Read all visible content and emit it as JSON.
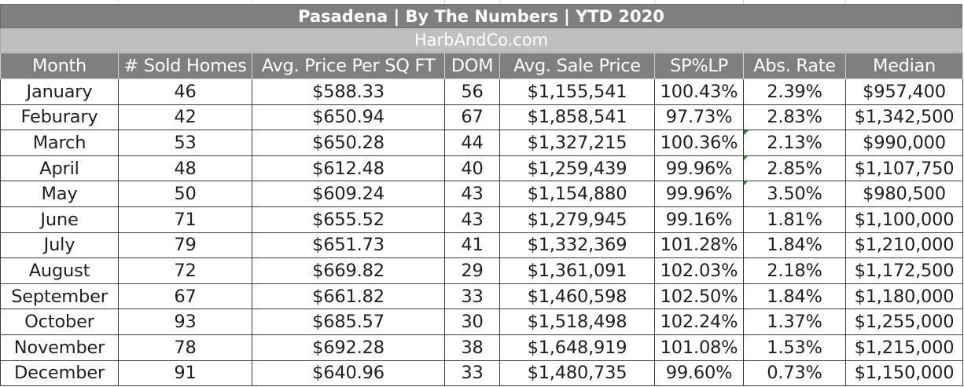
{
  "sheet": {
    "title": "Pasadena |  By The Numbers  |  YTD 2020",
    "subtitle": "HarbAndCo.com"
  },
  "table": {
    "headers": [
      "Month",
      "# Sold Homes",
      "Avg. Price Per SQ FT",
      "DOM",
      "Avg. Sale Price",
      "SP%LP",
      "Abs. Rate",
      "Median"
    ],
    "rows": [
      [
        "January",
        "46",
        "$588.33",
        "56",
        "$1,155,541",
        "100.43%",
        "2.39%",
        "$957,400"
      ],
      [
        "Feburary",
        "42",
        "$650.94",
        "67",
        "$1,858,541",
        "97.73%",
        "2.83%",
        "$1,342,500"
      ],
      [
        "March",
        "53",
        "$650.28",
        "44",
        "$1,327,215",
        "100.36%",
        "2.13%",
        "$990,000"
      ],
      [
        "April",
        "48",
        "$612.48",
        "40",
        "$1,259,439",
        "99.96%",
        "2.85%",
        "$1,107,750"
      ],
      [
        "May",
        "50",
        "$609.24",
        "43",
        "$1,154,880",
        "99.96%",
        "3.50%",
        "$980,500"
      ],
      [
        "June",
        "71",
        "$655.52",
        "43",
        "$1,279,945",
        "99.16%",
        "1.81%",
        "$1,100,000"
      ],
      [
        "July",
        "79",
        "$651.73",
        "41",
        "$1,332,369",
        "101.28%",
        "1.84%",
        "$1,210,000"
      ],
      [
        "August",
        "72",
        "$669.82",
        "29",
        "$1,361,091",
        "102.03%",
        "2.18%",
        "$1,172,500"
      ],
      [
        "September",
        "67",
        "$661.82",
        "33",
        "$1,460,598",
        "102.50%",
        "1.84%",
        "$1,180,000"
      ],
      [
        "October",
        "93",
        "$685.57",
        "30",
        "$1,518,498",
        "102.24%",
        "1.37%",
        "$1,255,000"
      ],
      [
        "November",
        "78",
        "$692.28",
        "38",
        "$1,648,919",
        "101.08%",
        "1.53%",
        "$1,215,000"
      ],
      [
        "December",
        "91",
        "$640.96",
        "33",
        "$1,480,735",
        "99.60%",
        "0.73%",
        "$1,150,000"
      ]
    ]
  },
  "colors": {
    "header_bg": "#7f7f7f",
    "subtitle_bg": "#bfbfbf",
    "cell_text": "#1f1f1f",
    "error_marker": "#2e7d32"
  }
}
